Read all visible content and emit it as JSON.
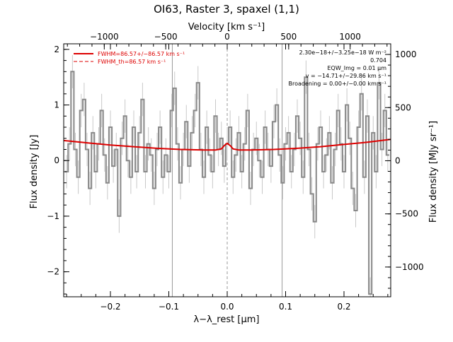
{
  "chart_data": {
    "type": "line",
    "title": "OI63, Raster 3, spaxel (1,1)",
    "xlabel": "λ−λ_rest [μm]",
    "ylabel": "Flux density [Jy]",
    "top_xlabel": "Velocity [km s⁻¹]",
    "right_ylabel": "Flux density [MJy sr⁻¹]",
    "xlim": [
      -0.28,
      0.28
    ],
    "ylim": [
      -2.45,
      2.1
    ],
    "top_xlim": [
      -1330,
      1330
    ],
    "right_ylim": [
      -1280,
      1100
    ],
    "x_ticks": [
      -0.2,
      -0.1,
      0.0,
      0.1,
      0.2
    ],
    "x_tick_labels": [
      "−0.2",
      "−0.1",
      "0.0",
      "0.1",
      "0.2"
    ],
    "y_ticks": [
      -2,
      -1,
      0,
      1,
      2
    ],
    "y_tick_labels": [
      "−2",
      "−1",
      "0",
      "1",
      "2"
    ],
    "top_ticks": [
      -1000,
      -500,
      0,
      500,
      1000
    ],
    "top_tick_labels": [
      "−1000",
      "−500",
      "0",
      "500",
      "1000"
    ],
    "right_ticks": [
      -1000,
      -500,
      0,
      500,
      1000
    ],
    "right_tick_labels": [
      "−1000",
      "−500",
      "0",
      "500",
      "1000"
    ],
    "vertical_lines": [
      -0.094,
      0.0,
      0.094
    ],
    "series": [
      {
        "name": "",
        "style": "step",
        "color": "#888888",
        "x": [
          -0.275,
          -0.27,
          -0.265,
          -0.26,
          -0.255,
          -0.25,
          -0.245,
          -0.24,
          -0.235,
          -0.23,
          -0.225,
          -0.22,
          -0.215,
          -0.21,
          -0.205,
          -0.2,
          -0.195,
          -0.19,
          -0.185,
          -0.18,
          -0.175,
          -0.17,
          -0.165,
          -0.16,
          -0.155,
          -0.15,
          -0.145,
          -0.14,
          -0.135,
          -0.13,
          -0.125,
          -0.12,
          -0.115,
          -0.11,
          -0.105,
          -0.1,
          -0.095,
          -0.09,
          -0.085,
          -0.08,
          -0.075,
          -0.07,
          -0.065,
          -0.06,
          -0.055,
          -0.05,
          -0.045,
          -0.04,
          -0.035,
          -0.03,
          -0.025,
          -0.02,
          -0.015,
          -0.01,
          -0.005,
          0.0,
          0.005,
          0.01,
          0.015,
          0.02,
          0.025,
          0.03,
          0.035,
          0.04,
          0.045,
          0.05,
          0.055,
          0.06,
          0.065,
          0.07,
          0.075,
          0.08,
          0.085,
          0.09,
          0.095,
          0.1,
          0.105,
          0.11,
          0.115,
          0.12,
          0.125,
          0.13,
          0.135,
          0.14,
          0.145,
          0.15,
          0.155,
          0.16,
          0.165,
          0.17,
          0.175,
          0.18,
          0.185,
          0.19,
          0.195,
          0.2,
          0.205,
          0.21,
          0.215,
          0.22,
          0.225,
          0.23,
          0.235,
          0.24,
          0.245,
          0.25,
          0.255,
          0.26,
          0.265,
          0.27,
          0.275
        ],
        "y": [
          -0.2,
          0.3,
          1.6,
          0.2,
          -0.3,
          0.9,
          1.1,
          0.2,
          -0.5,
          0.5,
          -0.2,
          0.3,
          0.9,
          0.1,
          -0.4,
          0.6,
          -0.1,
          0.2,
          -1.0,
          0.4,
          0.8,
          0.0,
          -0.3,
          0.6,
          -0.2,
          0.5,
          1.1,
          -0.2,
          0.3,
          0.1,
          -0.5,
          0.2,
          0.6,
          -0.3,
          0.1,
          -0.2,
          0.9,
          1.3,
          0.3,
          -0.4,
          0.2,
          0.7,
          -0.1,
          0.5,
          0.9,
          1.4,
          0.2,
          -0.3,
          0.6,
          0.1,
          -0.2,
          0.8,
          0.2,
          0.4,
          -0.1,
          0.3,
          0.6,
          -0.3,
          0.1,
          0.5,
          -0.2,
          0.3,
          0.9,
          -0.5,
          0.2,
          0.4,
          0.0,
          -0.3,
          0.6,
          0.2,
          -0.1,
          0.7,
          1.0,
          0.1,
          -0.4,
          0.3,
          0.5,
          -0.2,
          0.2,
          0.8,
          0.4,
          -0.3,
          1.5,
          0.2,
          -0.6,
          -1.1,
          0.3,
          0.6,
          -0.2,
          0.1,
          0.5,
          -0.4,
          0.2,
          0.9,
          0.3,
          -0.2,
          1.0,
          0.4,
          -0.5,
          -0.9,
          0.6,
          1.2,
          -0.3,
          0.8,
          -2.4,
          0.5,
          -0.2,
          1.4,
          0.2,
          0.9,
          0.1
        ],
        "yerr": [
          0.3,
          0.3,
          0.3,
          0.3,
          0.3,
          0.3,
          0.3,
          0.3,
          0.3,
          0.3,
          0.3,
          0.3,
          0.3,
          0.3,
          0.3,
          0.3,
          0.3,
          0.3,
          0.3,
          0.3,
          0.3,
          0.3,
          0.3,
          0.3,
          0.3,
          0.3,
          0.3,
          0.3,
          0.3,
          0.3,
          0.3,
          0.3,
          0.3,
          0.3,
          0.3,
          0.3,
          0.3,
          0.3,
          0.3,
          0.3,
          0.3,
          0.3,
          0.3,
          0.3,
          0.3,
          0.3,
          0.3,
          0.3,
          0.3,
          0.3,
          0.3,
          0.3,
          0.3,
          0.3,
          0.3,
          0.3,
          0.3,
          0.3,
          0.3,
          0.3,
          0.3,
          0.3,
          0.3,
          0.3,
          0.3,
          0.3,
          0.3,
          0.3,
          0.3,
          0.3,
          0.3,
          0.3,
          0.3,
          0.3,
          0.3,
          0.3,
          0.3,
          0.3,
          0.3,
          0.3,
          0.3,
          0.3,
          0.3,
          0.3,
          0.3,
          0.3,
          0.3,
          0.3,
          0.3,
          0.3,
          0.3,
          0.3,
          0.3,
          0.3,
          0.3,
          0.3,
          0.3,
          0.3,
          0.3,
          0.3,
          0.3,
          0.3,
          0.3,
          0.3,
          0.3,
          0.3,
          0.3,
          0.3,
          0.3,
          0.3,
          0.3
        ]
      },
      {
        "name": "FWHM=86.57+/−86.57 km s⁻¹",
        "style": "solid",
        "color": "#dd0000",
        "x": [
          -0.28,
          -0.24,
          -0.2,
          -0.16,
          -0.12,
          -0.08,
          -0.04,
          -0.02,
          -0.01,
          -0.005,
          0.0,
          0.005,
          0.01,
          0.02,
          0.04,
          0.08,
          0.12,
          0.16,
          0.2,
          0.24,
          0.28
        ],
        "y": [
          0.36,
          0.32,
          0.28,
          0.25,
          0.22,
          0.2,
          0.19,
          0.19,
          0.21,
          0.27,
          0.31,
          0.27,
          0.21,
          0.19,
          0.19,
          0.2,
          0.22,
          0.25,
          0.29,
          0.33,
          0.38
        ]
      }
    ],
    "legend": {
      "placement": "top-left",
      "entries": [
        {
          "label": "FWHM=86.57+/−86.57 km s⁻¹",
          "style": "solid",
          "color": "#dd0000"
        },
        {
          "label": "FWHM_th=86.57 km s⁻¹",
          "style": "dashed",
          "color": "#dd0000"
        }
      ]
    },
    "annotations": [
      "2.30e−18+/−3.25e−18 W m⁻²",
      "0.704",
      "EQW_Img = 0.01 μm",
      "v = −14.71+/−29.86 km s⁻¹",
      "Broadening = 0.00+/−0.00 km s⁻¹"
    ]
  }
}
